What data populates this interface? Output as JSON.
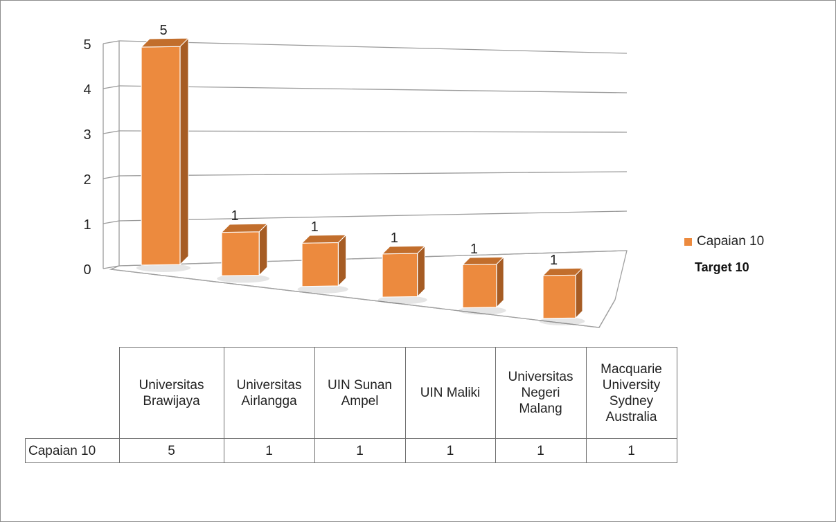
{
  "chart_data": {
    "type": "bar",
    "style": "3d-column",
    "categories": [
      "Universitas Brawijaya",
      "Universitas Airlangga",
      "UIN Sunan Ampel",
      "UIN Maliki",
      "Universitas Negeri Malang",
      "Macquarie University Sydney Australia"
    ],
    "series": [
      {
        "name": "Capaian 10",
        "values": [
          5,
          1,
          1,
          1,
          1,
          1
        ],
        "color": "#ec8a3e"
      }
    ],
    "y_ticks": [
      "0",
      "1",
      "2",
      "3",
      "4",
      "5"
    ],
    "ylim": [
      0,
      5
    ],
    "grid": true,
    "legend_position": "right",
    "legend_note": "Target 10",
    "data_table": {
      "row_label": "Capaian 10",
      "column_labels": [
        [
          "Universitas",
          "Brawijaya"
        ],
        [
          "Universitas",
          "Airlangga"
        ],
        [
          "UIN Sunan",
          "Ampel"
        ],
        [
          "UIN Maliki"
        ],
        [
          "Universitas",
          "Negeri",
          "Malang"
        ],
        [
          "Macquarie",
          "University",
          "Sydney",
          "Australia"
        ]
      ],
      "values": [
        "5",
        "1",
        "1",
        "1",
        "1",
        "1"
      ]
    }
  }
}
